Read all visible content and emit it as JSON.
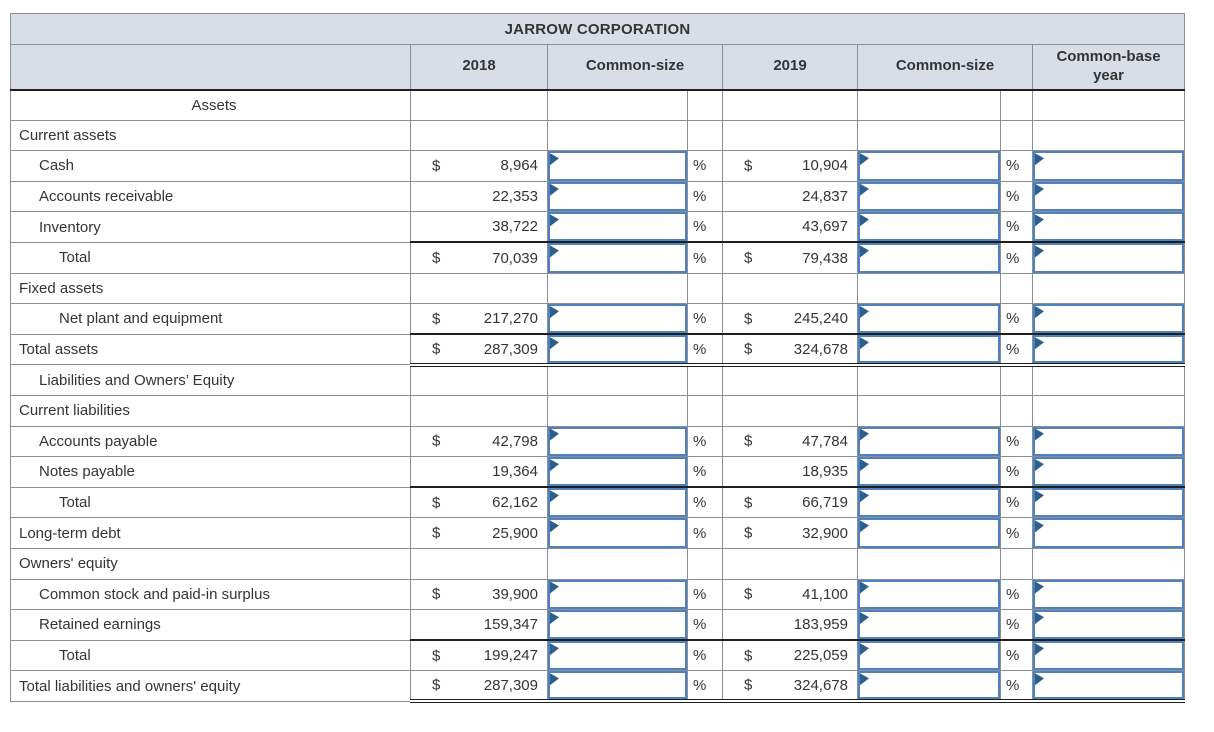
{
  "title": "JARROW CORPORATION",
  "header": {
    "col_2018": "2018",
    "common_size_1": "Common-size",
    "col_2019": "2019",
    "common_size_2": "Common-size",
    "common_base": "Common-base year"
  },
  "symbols": {
    "dollar": "$",
    "percent": "%"
  },
  "input_default_value": "",
  "colors": {
    "header_bg": "#d9dde6",
    "grid_border": "#8a8e96",
    "dark_rule": "#1f1f1f",
    "input_border": "#4f81bd",
    "flag": "#2d5f8e",
    "text": "#343434"
  },
  "rows": [
    {
      "label": "Assets",
      "indent": 0,
      "align": "center",
      "has_inputs": false
    },
    {
      "label": "Current assets",
      "indent": 0,
      "has_inputs": false
    },
    {
      "label": "Cash",
      "indent": 1,
      "has_inputs": true,
      "dollar_2018": true,
      "amount_2018": "8,964",
      "dollar_2019": true,
      "amount_2019": "10,904"
    },
    {
      "label": "Accounts receivable",
      "indent": 1,
      "has_inputs": true,
      "dollar_2018": false,
      "amount_2018": "22,353",
      "dollar_2019": false,
      "amount_2019": "24,837"
    },
    {
      "label": "Inventory",
      "indent": 1,
      "has_inputs": true,
      "dollar_2018": false,
      "amount_2018": "38,722",
      "dollar_2019": false,
      "amount_2019": "43,697"
    },
    {
      "label": "Total",
      "indent": 2,
      "has_inputs": true,
      "dollar_2018": true,
      "amount_2018": "70,039",
      "dollar_2019": true,
      "amount_2019": "79,438",
      "dark_top": true
    },
    {
      "label": "Fixed assets",
      "indent": 0,
      "has_inputs": false
    },
    {
      "label": "Net plant and equipment",
      "indent": 2,
      "has_inputs": true,
      "dollar_2018": true,
      "amount_2018": "217,270",
      "dollar_2019": true,
      "amount_2019": "245,240"
    },
    {
      "label": "Total assets",
      "indent": 0,
      "has_inputs": true,
      "dollar_2018": true,
      "amount_2018": "287,309",
      "dollar_2019": true,
      "amount_2019": "324,678",
      "dark_top": true,
      "double_bottom": true
    },
    {
      "label": "Liabilities and Owners’ Equity",
      "indent": 1,
      "has_inputs": false
    },
    {
      "label": "Current liabilities",
      "indent": 0,
      "has_inputs": false
    },
    {
      "label": "Accounts payable",
      "indent": 1,
      "has_inputs": true,
      "dollar_2018": true,
      "amount_2018": "42,798",
      "dollar_2019": true,
      "amount_2019": "47,784"
    },
    {
      "label": "Notes payable",
      "indent": 1,
      "has_inputs": true,
      "dollar_2018": false,
      "amount_2018": "19,364",
      "dollar_2019": false,
      "amount_2019": "18,935"
    },
    {
      "label": "Total",
      "indent": 2,
      "has_inputs": true,
      "dollar_2018": true,
      "amount_2018": "62,162",
      "dollar_2019": true,
      "amount_2019": "66,719",
      "dark_top": true
    },
    {
      "label": "Long-term debt",
      "indent": 0,
      "has_inputs": true,
      "dollar_2018": true,
      "amount_2018": "25,900",
      "dollar_2019": true,
      "amount_2019": "32,900"
    },
    {
      "label": "Owners' equity",
      "indent": 0,
      "has_inputs": false
    },
    {
      "label": "Common stock and paid-in surplus",
      "indent": 1,
      "has_inputs": true,
      "dollar_2018": true,
      "amount_2018": "39,900",
      "dollar_2019": true,
      "amount_2019": "41,100"
    },
    {
      "label": "Retained earnings",
      "indent": 1,
      "has_inputs": true,
      "dollar_2018": false,
      "amount_2018": "159,347",
      "dollar_2019": false,
      "amount_2019": "183,959"
    },
    {
      "label": "Total",
      "indent": 2,
      "has_inputs": true,
      "dollar_2018": true,
      "amount_2018": "199,247",
      "dollar_2019": true,
      "amount_2019": "225,059",
      "dark_top": true
    },
    {
      "label": "Total liabilities and owners' equity",
      "indent": 0,
      "has_inputs": true,
      "dollar_2018": true,
      "amount_2018": "287,309",
      "dollar_2019": true,
      "amount_2019": "324,678",
      "double_bottom": true
    }
  ]
}
